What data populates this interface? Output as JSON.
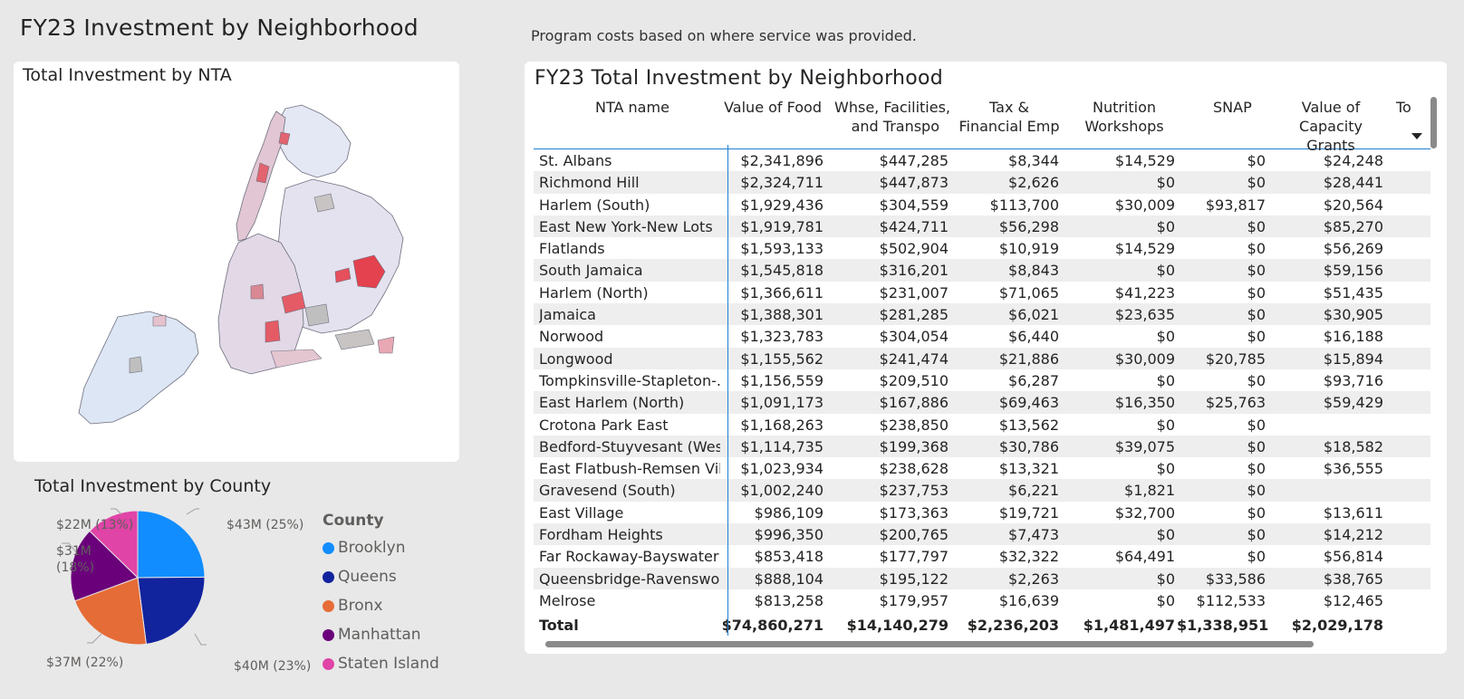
{
  "page_title": "FY23 Investment by Neighborhood",
  "subtitle": "Program costs based on where service was provided.",
  "map": {
    "title": "Total Investment by NTA"
  },
  "pie": {
    "title": "Total Investment by County",
    "legend_title": "County",
    "labels": {
      "brooklyn": "$43M (25%)",
      "queens": "$40M (23%)",
      "bronx": "$37M (22%)",
      "manhattan_line1": "$31M",
      "manhattan_line2": "(18%)",
      "staten": "$22M (13%)"
    },
    "legend": [
      "Brooklyn",
      "Queens",
      "Bronx",
      "Manhattan",
      "Staten Island"
    ],
    "colors": {
      "Brooklyn": "#118DFF",
      "Queens": "#12239E",
      "Bronx": "#E66C37",
      "Manhattan": "#6B007B",
      "Staten Island": "#E044A7"
    }
  },
  "chart_data": {
    "type": "pie",
    "title": "Total Investment by County",
    "legend_title": "County",
    "categories": [
      "Brooklyn",
      "Queens",
      "Bronx",
      "Manhattan",
      "Staten Island"
    ],
    "values": [
      43,
      40,
      37,
      31,
      22
    ],
    "units": "$M",
    "percent": [
      25,
      23,
      22,
      18,
      13
    ],
    "legend_position": "right"
  },
  "table": {
    "title": "FY23 Total Investment by Neighborhood",
    "headers": {
      "name": "NTA name",
      "food": "Value of Food",
      "whse_1": "Whse, Facilities,",
      "whse_2": "and Transpo",
      "tax_1": "Tax &",
      "tax_2": "Financial Emp",
      "nut_1": "Nutrition",
      "nut_2": "Workshops",
      "snap": "SNAP",
      "cap_1": "Value of",
      "cap_2": "Capacity Grants",
      "to": "To"
    },
    "rows": [
      [
        "St. Albans",
        "$2,341,896",
        "$447,285",
        "$8,344",
        "$14,529",
        "$0",
        "$24,248"
      ],
      [
        "Richmond Hill",
        "$2,324,711",
        "$447,873",
        "$2,626",
        "$0",
        "$0",
        "$28,441"
      ],
      [
        "Harlem (South)",
        "$1,929,436",
        "$304,559",
        "$113,700",
        "$30,009",
        "$93,817",
        "$20,564"
      ],
      [
        "East New York-New Lots",
        "$1,919,781",
        "$424,711",
        "$56,298",
        "$0",
        "$0",
        "$85,270"
      ],
      [
        "Flatlands",
        "$1,593,133",
        "$502,904",
        "$10,919",
        "$14,529",
        "$0",
        "$56,269"
      ],
      [
        "South Jamaica",
        "$1,545,818",
        "$316,201",
        "$8,843",
        "$0",
        "$0",
        "$59,156"
      ],
      [
        "Harlem (North)",
        "$1,366,611",
        "$231,007",
        "$71,065",
        "$41,223",
        "$0",
        "$51,435"
      ],
      [
        "Jamaica",
        "$1,388,301",
        "$281,285",
        "$6,021",
        "$23,635",
        "$0",
        "$30,905"
      ],
      [
        "Norwood",
        "$1,323,783",
        "$304,054",
        "$6,440",
        "$0",
        "$0",
        "$16,188"
      ],
      [
        "Longwood",
        "$1,155,562",
        "$241,474",
        "$21,886",
        "$30,009",
        "$20,785",
        "$15,894"
      ],
      [
        "Tompkinsville-Stapleton-...",
        "$1,156,559",
        "$209,510",
        "$6,287",
        "$0",
        "$0",
        "$93,716"
      ],
      [
        "East Harlem (North)",
        "$1,091,173",
        "$167,886",
        "$69,463",
        "$16,350",
        "$25,763",
        "$59,429"
      ],
      [
        "Crotona Park East",
        "$1,168,263",
        "$238,850",
        "$13,562",
        "$0",
        "$0",
        ""
      ],
      [
        "Bedford-Stuyvesant (West)",
        "$1,114,735",
        "$199,368",
        "$30,786",
        "$39,075",
        "$0",
        "$18,582"
      ],
      [
        "East Flatbush-Remsen Vil...",
        "$1,023,934",
        "$238,628",
        "$13,321",
        "$0",
        "$0",
        "$36,555"
      ],
      [
        "Gravesend (South)",
        "$1,002,240",
        "$237,753",
        "$6,221",
        "$1,821",
        "$0",
        ""
      ],
      [
        "East Village",
        "$986,109",
        "$173,363",
        "$19,721",
        "$32,700",
        "$0",
        "$13,611"
      ],
      [
        "Fordham Heights",
        "$996,350",
        "$200,765",
        "$7,473",
        "$0",
        "$0",
        "$14,212"
      ],
      [
        "Far Rockaway-Bayswater",
        "$853,418",
        "$177,797",
        "$32,322",
        "$64,491",
        "$0",
        "$56,814"
      ],
      [
        "Queensbridge-Ravenswo...",
        "$888,104",
        "$195,122",
        "$2,263",
        "$0",
        "$33,586",
        "$38,765"
      ],
      [
        "Melrose",
        "$813,258",
        "$179,957",
        "$16,639",
        "$0",
        "$112,533",
        "$12,465"
      ]
    ],
    "total": [
      "Total",
      "$74,860,271",
      "$14,140,279",
      "$2,236,203",
      "$1,481,497",
      "$1,338,951",
      "$2,029,178"
    ]
  }
}
